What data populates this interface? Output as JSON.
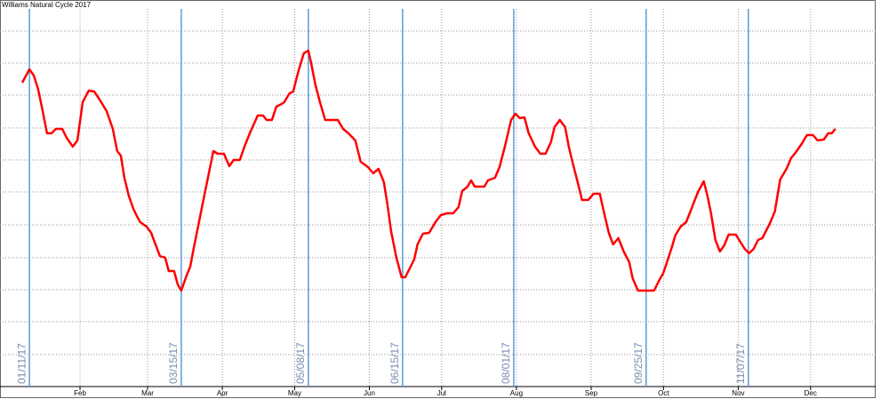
{
  "chart_data": {
    "type": "line",
    "title": "Williams Natural Cycle 2017",
    "xlim": [
      -2.2,
      361
    ],
    "xticks": [
      {
        "value": 31,
        "label": "Feb"
      },
      {
        "value": 59,
        "label": "Mar"
      },
      {
        "value": 90,
        "label": "Apr"
      },
      {
        "value": 120,
        "label": "May"
      },
      {
        "value": 151,
        "label": "Jun"
      },
      {
        "value": 181,
        "label": "Jul"
      },
      {
        "value": 212,
        "label": "Aug"
      },
      {
        "value": 243,
        "label": "Sep"
      },
      {
        "value": 273,
        "label": "Oct"
      },
      {
        "value": 304,
        "label": "Nov"
      },
      {
        "value": 334,
        "label": "Dec"
      }
    ],
    "ylim": [
      0,
      425
    ],
    "yticks": [
      36,
      73,
      109,
      145,
      182,
      219,
      255,
      291,
      328,
      364,
      400
    ],
    "grid": true,
    "annotations": [
      {
        "x": 10,
        "label": "01/11/17"
      },
      {
        "x": 73,
        "label": "03/15/17"
      },
      {
        "x": 125.7,
        "label": "05/08/17"
      },
      {
        "x": 164.8,
        "label": "06/15/17"
      },
      {
        "x": 210.9,
        "label": "08/01/17"
      },
      {
        "x": 265.8,
        "label": "09/25/17"
      },
      {
        "x": 308.2,
        "label": "11/07/17"
      }
    ],
    "annotation_color": "#5b9bd5",
    "series": [
      {
        "color": "#ff0000",
        "x": [
          7.0,
          10.0,
          11.8,
          13.6,
          15.5,
          17.3,
          19.2,
          21.0,
          23.6,
          25.4,
          28.0,
          29.9,
          32.1,
          34.6,
          36.9,
          39.1,
          42.0,
          44.6,
          46.4,
          47.9,
          49.4,
          51.2,
          53.1,
          54.9,
          56.0,
          58.6,
          60.5,
          62.3,
          64.1,
          66.3,
          67.8,
          70.0,
          71.5,
          73.0,
          75.2,
          76.7,
          78.1,
          79.6,
          81.8,
          84.4,
          86.3,
          88.1,
          90.7,
          92.9,
          94.7,
          97.3,
          99.2,
          101.7,
          104.7,
          106.9,
          108.4,
          110.6,
          112.4,
          114.6,
          115.7,
          117.9,
          119.4,
          121.6,
          123.8,
          125.7,
          126.8,
          128.6,
          130.5,
          132.7,
          134.9,
          137.9,
          140.1,
          142.3,
          145.2,
          147.4,
          150.4,
          152.6,
          154.8,
          157.0,
          158.5,
          160.0,
          162.2,
          164.4,
          165.9,
          168.1,
          169.6,
          171.0,
          173.2,
          175.8,
          178.4,
          180.6,
          183.2,
          185.8,
          188.0,
          189.5,
          191.7,
          193.2,
          194.7,
          198.7,
          200.2,
          203.1,
          205.0,
          207.2,
          209.8,
          211.6,
          213.4,
          215.3,
          217.1,
          219.7,
          221.9,
          224.1,
          226.3,
          227.8,
          230.0,
          232.2,
          233.7,
          235.5,
          237.4,
          239.2,
          241.8,
          244.0,
          246.6,
          248.4,
          250.3,
          252.1,
          254.3,
          256.5,
          258.8,
          260.2,
          262.4,
          269.1,
          271.3,
          272.8,
          274.2,
          276.5,
          277.9,
          280.1,
          282.4,
          284.6,
          286.0,
          287.5,
          289.7,
          291.2,
          292.7,
          294.5,
          296.4,
          298.2,
          300.0,
          303.0,
          304.8,
          306.7,
          308.5,
          310.4,
          312.2,
          314.0,
          315.5,
          317.0,
          319.2,
          321.4,
          324.0,
          325.9,
          327.7,
          330.3,
          332.5,
          335.0,
          336.9,
          339.5,
          341.3,
          342.8,
          344.3
        ],
        "values": [
          342,
          357,
          350,
          335,
          310,
          285,
          285,
          290,
          290,
          280,
          270,
          277,
          320,
          333,
          332,
          323,
          310,
          290,
          265,
          260,
          235,
          215,
          200,
          190,
          185,
          180,
          173,
          160,
          147,
          145,
          130,
          130,
          115,
          108,
          125,
          135,
          155,
          175,
          205,
          240,
          265,
          262,
          262,
          248,
          255,
          255,
          270,
          287,
          305,
          305,
          300,
          300,
          315,
          318,
          320,
          330,
          332,
          355,
          375,
          378,
          365,
          340,
          320,
          300,
          300,
          300,
          290,
          285,
          277,
          253,
          247,
          240,
          245,
          230,
          205,
          175,
          145,
          123,
          123,
          135,
          143,
          160,
          172,
          173,
          185,
          193,
          195,
          195,
          202,
          220,
          225,
          232,
          225,
          225,
          232,
          235,
          247,
          270,
          300,
          307,
          302,
          303,
          285,
          270,
          262,
          262,
          275,
          292,
          300,
          292,
          270,
          250,
          230,
          210,
          210,
          217,
          217,
          195,
          173,
          160,
          167,
          152,
          140,
          122,
          108,
          108,
          120,
          127,
          138,
          157,
          170,
          180,
          185,
          200,
          210,
          220,
          231,
          215,
          195,
          165,
          152,
          159,
          171,
          171,
          163,
          155,
          150,
          155,
          165,
          167,
          175,
          183,
          197,
          233,
          245,
          257,
          263,
          273,
          283,
          283,
          277,
          278,
          285,
          285,
          290
        ]
      }
    ]
  }
}
